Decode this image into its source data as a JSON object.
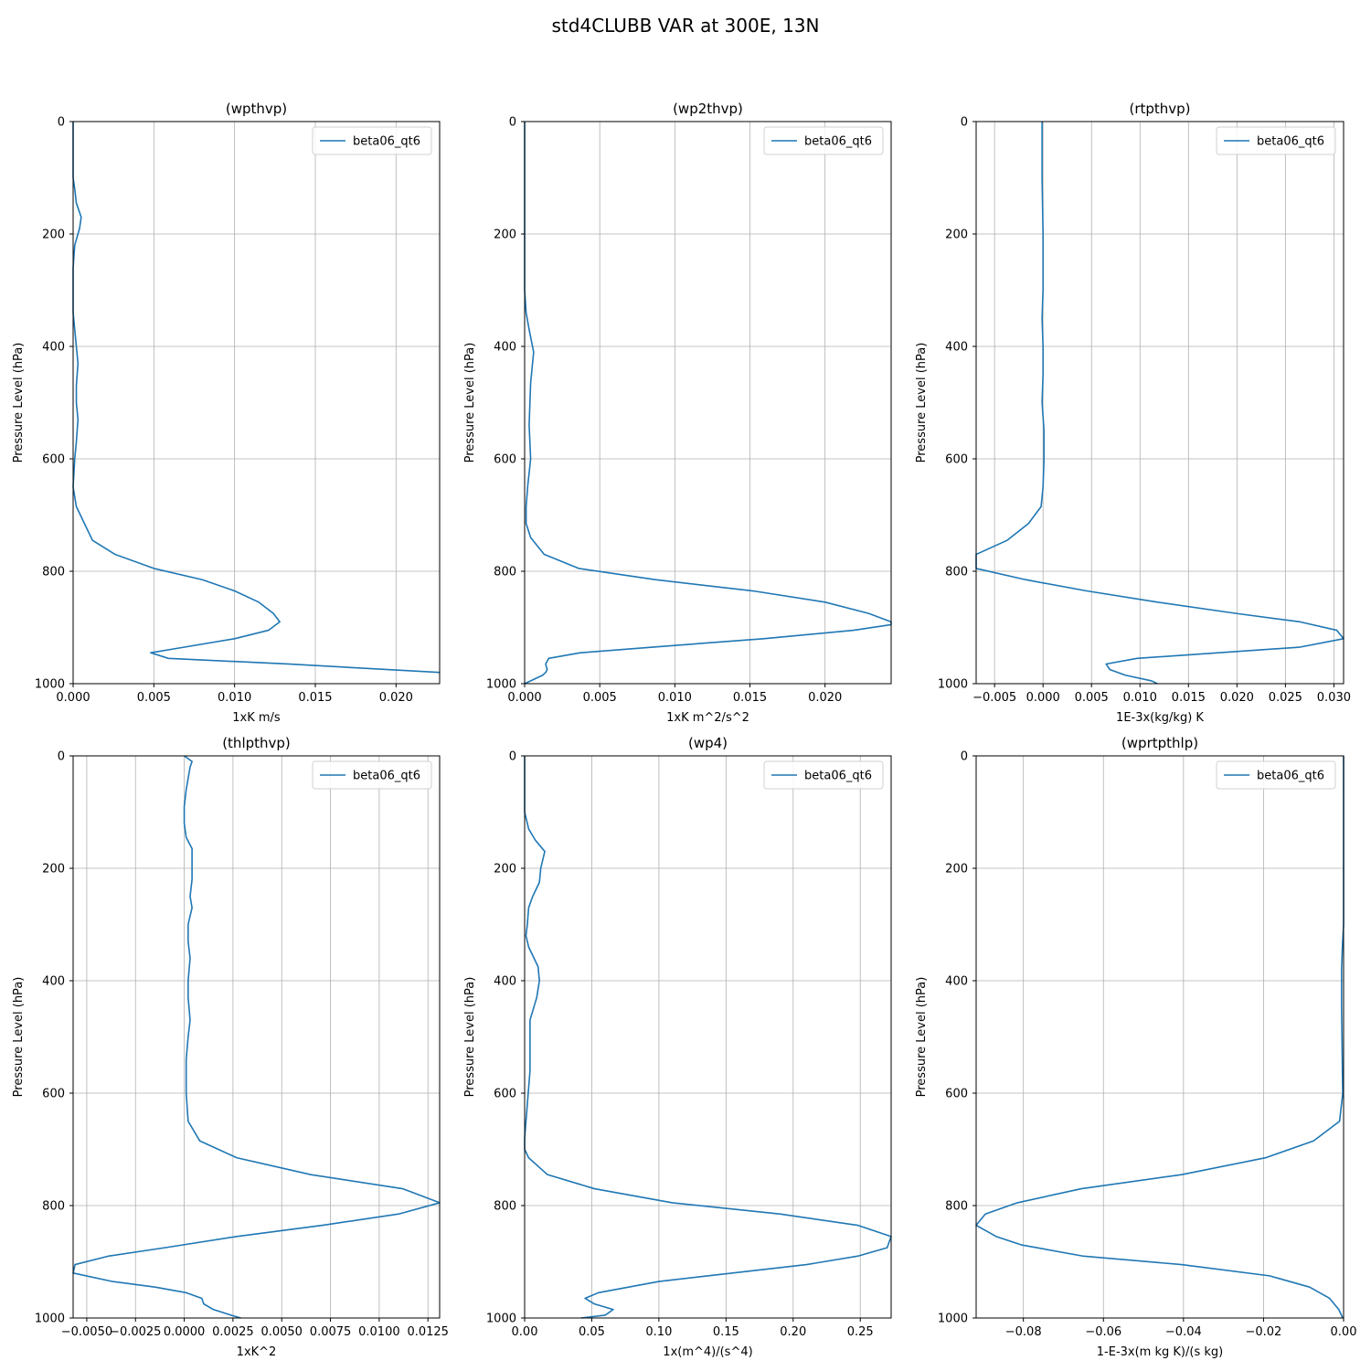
{
  "figure": {
    "title": "std4CLUBB VAR at 300E, 13N",
    "line_color": "#1f77b4"
  },
  "chart_data": [
    {
      "type": "line",
      "title": "(wpthvp)",
      "xlabel": "1xK m/s",
      "ylabel": "Pressure Level (hPa)",
      "xlim": [
        0,
        0.0227
      ],
      "ylim": [
        1000,
        0
      ],
      "xticks": [
        0,
        0.005,
        0.01,
        0.015,
        0.02
      ],
      "xtick_labels": [
        "0.000",
        "0.005",
        "0.010",
        "0.015",
        "0.020"
      ],
      "yticks": [
        0,
        200,
        400,
        600,
        800,
        1000
      ],
      "ytick_labels": [
        "0",
        "200",
        "400",
        "600",
        "800",
        "1000"
      ],
      "grid": true,
      "legend_position": "upper right",
      "series": [
        {
          "name": "beta06_qt6",
          "x": [
            0.0,
            0.0,
            0.0001,
            0.0002,
            0.0005,
            0.0004,
            0.0001,
            0.0,
            0.0,
            0.0,
            0.0001,
            0.0002,
            0.0003,
            0.0002,
            0.0002,
            0.0003,
            0.0002,
            0.0001,
            0.0,
            0.0002,
            0.0007,
            0.0012,
            0.0026,
            0.005,
            0.008,
            0.01,
            0.0115,
            0.0124,
            0.0128,
            0.0121,
            0.01,
            0.0069,
            0.0048,
            0.0059,
            0.0133,
            0.0227
          ],
          "y": [
            0,
            100,
            120,
            145,
            170,
            190,
            220,
            260,
            300,
            340,
            370,
            400,
            430,
            470,
            500,
            530,
            570,
            600,
            650,
            685,
            715,
            745,
            770,
            795,
            815,
            835,
            855,
            875,
            890,
            905,
            920,
            935,
            945,
            955,
            965,
            980
          ]
        }
      ]
    },
    {
      "type": "line",
      "title": "(wp2thvp)",
      "xlabel": "1xK m^2/s^2",
      "ylabel": "Pressure Level (hPa)",
      "xlim": [
        0,
        0.0244
      ],
      "ylim": [
        1000,
        0
      ],
      "xticks": [
        0,
        0.005,
        0.01,
        0.015,
        0.02
      ],
      "xtick_labels": [
        "0.000",
        "0.005",
        "0.010",
        "0.015",
        "0.020"
      ],
      "yticks": [
        0,
        200,
        400,
        600,
        800,
        1000
      ],
      "ytick_labels": [
        "0",
        "200",
        "400",
        "600",
        "800",
        "1000"
      ],
      "grid": true,
      "legend_position": "upper right",
      "series": [
        {
          "name": "beta06_qt6",
          "x": [
            0.0,
            0.0,
            0.0,
            0.0001,
            0.0003,
            0.0006,
            0.0004,
            0.0003,
            0.0004,
            0.0002,
            0.0001,
            0.0001,
            0.0004,
            0.0013,
            0.0036,
            0.0087,
            0.0152,
            0.02,
            0.0229,
            0.0244,
            0.0244,
            0.0219,
            0.0159,
            0.0085,
            0.0037,
            0.0016,
            0.0014,
            0.0015,
            0.0014,
            0.0012,
            0.0
          ],
          "y": [
            0,
            200,
            300,
            340,
            370,
            410,
            465,
            540,
            600,
            650,
            685,
            715,
            740,
            770,
            795,
            815,
            835,
            855,
            875,
            890,
            895,
            905,
            920,
            935,
            945,
            955,
            965,
            975,
            980,
            985,
            1000
          ]
        }
      ]
    },
    {
      "type": "line",
      "title": "(rtpthvp)",
      "xlabel": "1E-3x(kg/kg) K",
      "ylabel": "Pressure Level (hPa)",
      "xlim": [
        -0.0069,
        0.031
      ],
      "ylim": [
        1000,
        0
      ],
      "xticks": [
        -0.005,
        0,
        0.005,
        0.01,
        0.015,
        0.02,
        0.025,
        0.03
      ],
      "xtick_labels": [
        "−0.005",
        "0.000",
        "0.005",
        "0.010",
        "0.015",
        "0.020",
        "0.025",
        "0.030"
      ],
      "yticks": [
        0,
        200,
        400,
        600,
        800,
        1000
      ],
      "ytick_labels": [
        "0",
        "200",
        "400",
        "600",
        "800",
        "1000"
      ],
      "grid": true,
      "legend_position": "upper right",
      "series": [
        {
          "name": "beta06_qt6",
          "x": [
            -0.0001,
            -0.0001,
            0.0,
            0.0,
            -0.0001,
            0.0,
            0.0,
            -0.0001,
            0.0001,
            0.0001,
            0.0,
            -0.0002,
            -0.0015,
            -0.0037,
            -0.0069,
            -0.0069,
            -0.0018,
            0.0045,
            0.0118,
            0.0199,
            0.0265,
            0.0303,
            0.031,
            0.0265,
            0.0097,
            0.0065,
            0.0069,
            0.0085,
            0.0112,
            0.0118
          ],
          "y": [
            0,
            100,
            200,
            300,
            350,
            400,
            450,
            500,
            550,
            600,
            650,
            685,
            715,
            745,
            770,
            795,
            815,
            835,
            855,
            875,
            890,
            905,
            920,
            935,
            955,
            965,
            975,
            985,
            995,
            1000
          ]
        }
      ]
    },
    {
      "type": "line",
      "title": "(thlpthvp)",
      "xlabel": "1xK^2",
      "ylabel": "Pressure Level (hPa)",
      "xlim": [
        -0.0057,
        0.0131
      ],
      "ylim": [
        1000,
        0
      ],
      "xticks": [
        -0.005,
        -0.0025,
        0,
        0.0025,
        0.005,
        0.0075,
        0.01,
        0.0125
      ],
      "xtick_labels": [
        "−0.0050",
        "−0.0025",
        "0.0000",
        "0.0025",
        "0.0050",
        "0.0075",
        "0.0100",
        "0.0125"
      ],
      "yticks": [
        0,
        200,
        400,
        600,
        800,
        1000
      ],
      "ytick_labels": [
        "0",
        "200",
        "400",
        "600",
        "800",
        "1000"
      ],
      "grid": true,
      "legend_position": "upper right",
      "series": [
        {
          "name": "beta06_qt6",
          "x": [
            0.0,
            0.0004,
            0.0003,
            0.0002,
            0.0001,
            0.0,
            0.0,
            0.0001,
            0.0004,
            0.0004,
            0.0004,
            0.0003,
            0.0004,
            0.0002,
            0.0002,
            0.0003,
            0.0002,
            0.0002,
            0.0003,
            0.0002,
            0.0001,
            0.0001,
            0.0002,
            0.0008,
            0.0027,
            0.0065,
            0.0112,
            0.0131,
            0.011,
            0.0071,
            0.0027,
            -0.001,
            -0.0039,
            -0.0056,
            -0.0057,
            -0.0037,
            -0.0015,
            0.0001,
            0.0009,
            0.001,
            0.0015,
            0.0024,
            0.0029
          ],
          "y": [
            0,
            10,
            20,
            40,
            60,
            90,
            120,
            145,
            165,
            190,
            220,
            250,
            270,
            300,
            330,
            360,
            400,
            430,
            470,
            500,
            540,
            600,
            650,
            685,
            715,
            745,
            770,
            795,
            815,
            835,
            855,
            875,
            890,
            905,
            920,
            935,
            945,
            955,
            965,
            975,
            985,
            995,
            1000
          ]
        }
      ]
    },
    {
      "type": "line",
      "title": "(wp4)",
      "xlabel": "1x(m^4)/(s^4)",
      "ylabel": "Pressure Level (hPa)",
      "xlim": [
        0,
        0.273
      ],
      "ylim": [
        1000,
        0
      ],
      "xticks": [
        0,
        0.05,
        0.1,
        0.15,
        0.2,
        0.25
      ],
      "xtick_labels": [
        "0.00",
        "0.05",
        "0.10",
        "0.15",
        "0.20",
        "0.25"
      ],
      "yticks": [
        0,
        200,
        400,
        600,
        800,
        1000
      ],
      "ytick_labels": [
        "0",
        "200",
        "400",
        "600",
        "800",
        "1000"
      ],
      "grid": true,
      "legend_position": "upper right",
      "series": [
        {
          "name": "beta06_qt6",
          "x": [
            0.0,
            0.0,
            0.003,
            0.008,
            0.015,
            0.013,
            0.012,
            0.011,
            0.006,
            0.003,
            0.002,
            0.001,
            0.003,
            0.01,
            0.011,
            0.009,
            0.004,
            0.004,
            0.004,
            0.002,
            0.0,
            0.0,
            0.003,
            0.017,
            0.052,
            0.11,
            0.19,
            0.248,
            0.273,
            0.27,
            0.248,
            0.21,
            0.1,
            0.055,
            0.045,
            0.052,
            0.066,
            0.06,
            0.042
          ],
          "y": [
            0,
            100,
            130,
            150,
            170,
            190,
            200,
            225,
            250,
            270,
            300,
            320,
            340,
            375,
            400,
            430,
            470,
            500,
            560,
            620,
            680,
            700,
            715,
            745,
            770,
            795,
            815,
            835,
            855,
            875,
            890,
            905,
            935,
            955,
            965,
            975,
            985,
            995,
            1000
          ]
        }
      ]
    },
    {
      "type": "line",
      "title": "(wprtpthlp)",
      "xlabel": "1-E-3x(m kg K)/(s kg)",
      "ylabel": "Pressure Level (hPa)",
      "xlim": [
        -0.0918,
        0.0
      ],
      "ylim": [
        1000,
        0
      ],
      "xticks": [
        -0.08,
        -0.06,
        -0.04,
        -0.02,
        0
      ],
      "xtick_labels": [
        "−0.08",
        "−0.06",
        "−0.04",
        "−0.02",
        "0.00"
      ],
      "yticks": [
        0,
        200,
        400,
        600,
        800,
        1000
      ],
      "ytick_labels": [
        "0",
        "200",
        "400",
        "600",
        "800",
        "1000"
      ],
      "grid": true,
      "legend_position": "upper right",
      "series": [
        {
          "name": "beta06_qt6",
          "x": [
            0.0,
            0.0,
            -0.0003,
            -0.0005,
            -0.0005,
            -0.0004,
            -0.0003,
            -0.0002,
            -0.001,
            -0.0075,
            -0.0195,
            -0.0405,
            -0.0655,
            -0.0815,
            -0.0895,
            -0.0918,
            -0.0868,
            -0.0805,
            -0.065,
            -0.0405,
            -0.0185,
            -0.0085,
            -0.0035,
            -0.0012,
            -0.0002
          ],
          "y": [
            0,
            300,
            340,
            380,
            450,
            500,
            560,
            600,
            650,
            685,
            715,
            745,
            770,
            795,
            815,
            835,
            855,
            870,
            890,
            905,
            925,
            945,
            965,
            985,
            1000
          ]
        }
      ]
    }
  ]
}
